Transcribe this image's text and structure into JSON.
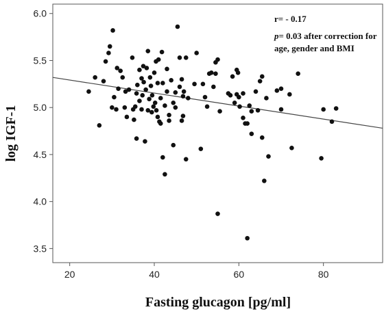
{
  "chart_data": {
    "type": "scatter",
    "title": "",
    "xlabel": "Fasting glucagon [pg/ml]",
    "ylabel": "log IGF-1",
    "xlim": [
      16,
      94
    ],
    "ylim": [
      3.35,
      6.1
    ],
    "xticks": [
      20,
      40,
      60,
      80
    ],
    "yticks": [
      3.5,
      4.0,
      4.5,
      5.0,
      5.5,
      6.0
    ],
    "xtick_labels": [
      "20",
      "40",
      "60",
      "80"
    ],
    "ytick_labels": [
      "3.5",
      "4.0",
      "4.5",
      "5.0",
      "5.5",
      "6.0"
    ],
    "grid": false,
    "annotations": {
      "r": "r= - 0.17",
      "p_symbol": "p",
      "p_text": "= 0.03 after correction for",
      "p_line2": "age, gender and BMI"
    },
    "regression_line": {
      "x": [
        16,
        94
      ],
      "y": [
        5.32,
        4.78
      ]
    },
    "points": [
      [
        24.5,
        5.17
      ],
      [
        26,
        5.32
      ],
      [
        27,
        4.81
      ],
      [
        28,
        5.28
      ],
      [
        28.5,
        5.49
      ],
      [
        29.2,
        5.58
      ],
      [
        29.5,
        5.65
      ],
      [
        30,
        5.0
      ],
      [
        30.5,
        5.11
      ],
      [
        30.2,
        5.82
      ],
      [
        31,
        4.98
      ],
      [
        31.2,
        5.42
      ],
      [
        31.5,
        5.2
      ],
      [
        32,
        5.39
      ],
      [
        32.5,
        5.32
      ],
      [
        33,
        5.0
      ],
      [
        33.2,
        5.17
      ],
      [
        33.5,
        4.9
      ],
      [
        34,
        5.19
      ],
      [
        34.8,
        5.53
      ],
      [
        35,
        4.98
      ],
      [
        35.2,
        4.87
      ],
      [
        35.5,
        5.01
      ],
      [
        35.8,
        5.15
      ],
      [
        35.8,
        4.67
      ],
      [
        36,
        5.24
      ],
      [
        36.5,
        5.4
      ],
      [
        36.5,
        5.07
      ],
      [
        37,
        5.31
      ],
      [
        37,
        4.98
      ],
      [
        37.2,
        5.13
      ],
      [
        37.4,
        5.44
      ],
      [
        37.5,
        5.27
      ],
      [
        37.8,
        4.64
      ],
      [
        38,
        5.19
      ],
      [
        38.2,
        5.42
      ],
      [
        38.5,
        4.97
      ],
      [
        38.5,
        5.6
      ],
      [
        38.8,
        5.09
      ],
      [
        39,
        5.32
      ],
      [
        39.2,
        5.23
      ],
      [
        39.4,
        4.95
      ],
      [
        39.5,
        5.13
      ],
      [
        39.8,
        5.01
      ],
      [
        40,
        5.37
      ],
      [
        40.2,
        5.05
      ],
      [
        40.4,
        5.49
      ],
      [
        40.5,
        4.97
      ],
      [
        40.8,
        5.26
      ],
      [
        40.8,
        4.9
      ],
      [
        41,
        5.51
      ],
      [
        41.2,
        4.85
      ],
      [
        41.5,
        4.83
      ],
      [
        41.5,
        5.1
      ],
      [
        41.8,
        5.59
      ],
      [
        42,
        5.26
      ],
      [
        42,
        4.47
      ],
      [
        42.5,
        4.29
      ],
      [
        42.5,
        5.02
      ],
      [
        43,
        5.17
      ],
      [
        43,
        5.41
      ],
      [
        43.5,
        4.92
      ],
      [
        43.5,
        4.86
      ],
      [
        44,
        5.29
      ],
      [
        44.5,
        5.05
      ],
      [
        44.5,
        4.6
      ],
      [
        45,
        5.0
      ],
      [
        45,
        5.16
      ],
      [
        45.5,
        5.86
      ],
      [
        46,
        5.53
      ],
      [
        46,
        5.22
      ],
      [
        46.5,
        5.3
      ],
      [
        46.5,
        4.86
      ],
      [
        46.8,
        5.12
      ],
      [
        46.8,
        4.91
      ],
      [
        47,
        5.17
      ],
      [
        47.5,
        4.45
      ],
      [
        47.5,
        5.53
      ],
      [
        48,
        5.1
      ],
      [
        49.5,
        5.25
      ],
      [
        50,
        5.58
      ],
      [
        51,
        4.56
      ],
      [
        51.5,
        5.25
      ],
      [
        52,
        5.11
      ],
      [
        52.5,
        5.01
      ],
      [
        53,
        5.36
      ],
      [
        53.5,
        5.37
      ],
      [
        54,
        5.22
      ],
      [
        54.5,
        5.48
      ],
      [
        54.5,
        5.36
      ],
      [
        55,
        5.51
      ],
      [
        55,
        3.87
      ],
      [
        55.5,
        4.96
      ],
      [
        57.5,
        5.15
      ],
      [
        58,
        5.13
      ],
      [
        58.5,
        5.33
      ],
      [
        59,
        5.05
      ],
      [
        59.5,
        5.14
      ],
      [
        59.5,
        5.4
      ],
      [
        59.8,
        5.37
      ],
      [
        60,
        5.11
      ],
      [
        60.2,
        5.01
      ],
      [
        61,
        5.15
      ],
      [
        61,
        4.89
      ],
      [
        61.5,
        4.83
      ],
      [
        62,
        3.61
      ],
      [
        62,
        4.83
      ],
      [
        62.5,
        5.02
      ],
      [
        63,
        4.96
      ],
      [
        63,
        4.72
      ],
      [
        64,
        5.17
      ],
      [
        64.5,
        4.97
      ],
      [
        65,
        5.28
      ],
      [
        65.5,
        5.33
      ],
      [
        65.5,
        4.68
      ],
      [
        66,
        4.22
      ],
      [
        66.5,
        5.1
      ],
      [
        67,
        4.48
      ],
      [
        69,
        5.18
      ],
      [
        70,
        5.2
      ],
      [
        70,
        4.98
      ],
      [
        72,
        5.14
      ],
      [
        72.5,
        4.57
      ],
      [
        74,
        5.36
      ],
      [
        79.5,
        4.46
      ],
      [
        80,
        4.98
      ],
      [
        82,
        4.85
      ],
      [
        83,
        4.99
      ]
    ]
  }
}
